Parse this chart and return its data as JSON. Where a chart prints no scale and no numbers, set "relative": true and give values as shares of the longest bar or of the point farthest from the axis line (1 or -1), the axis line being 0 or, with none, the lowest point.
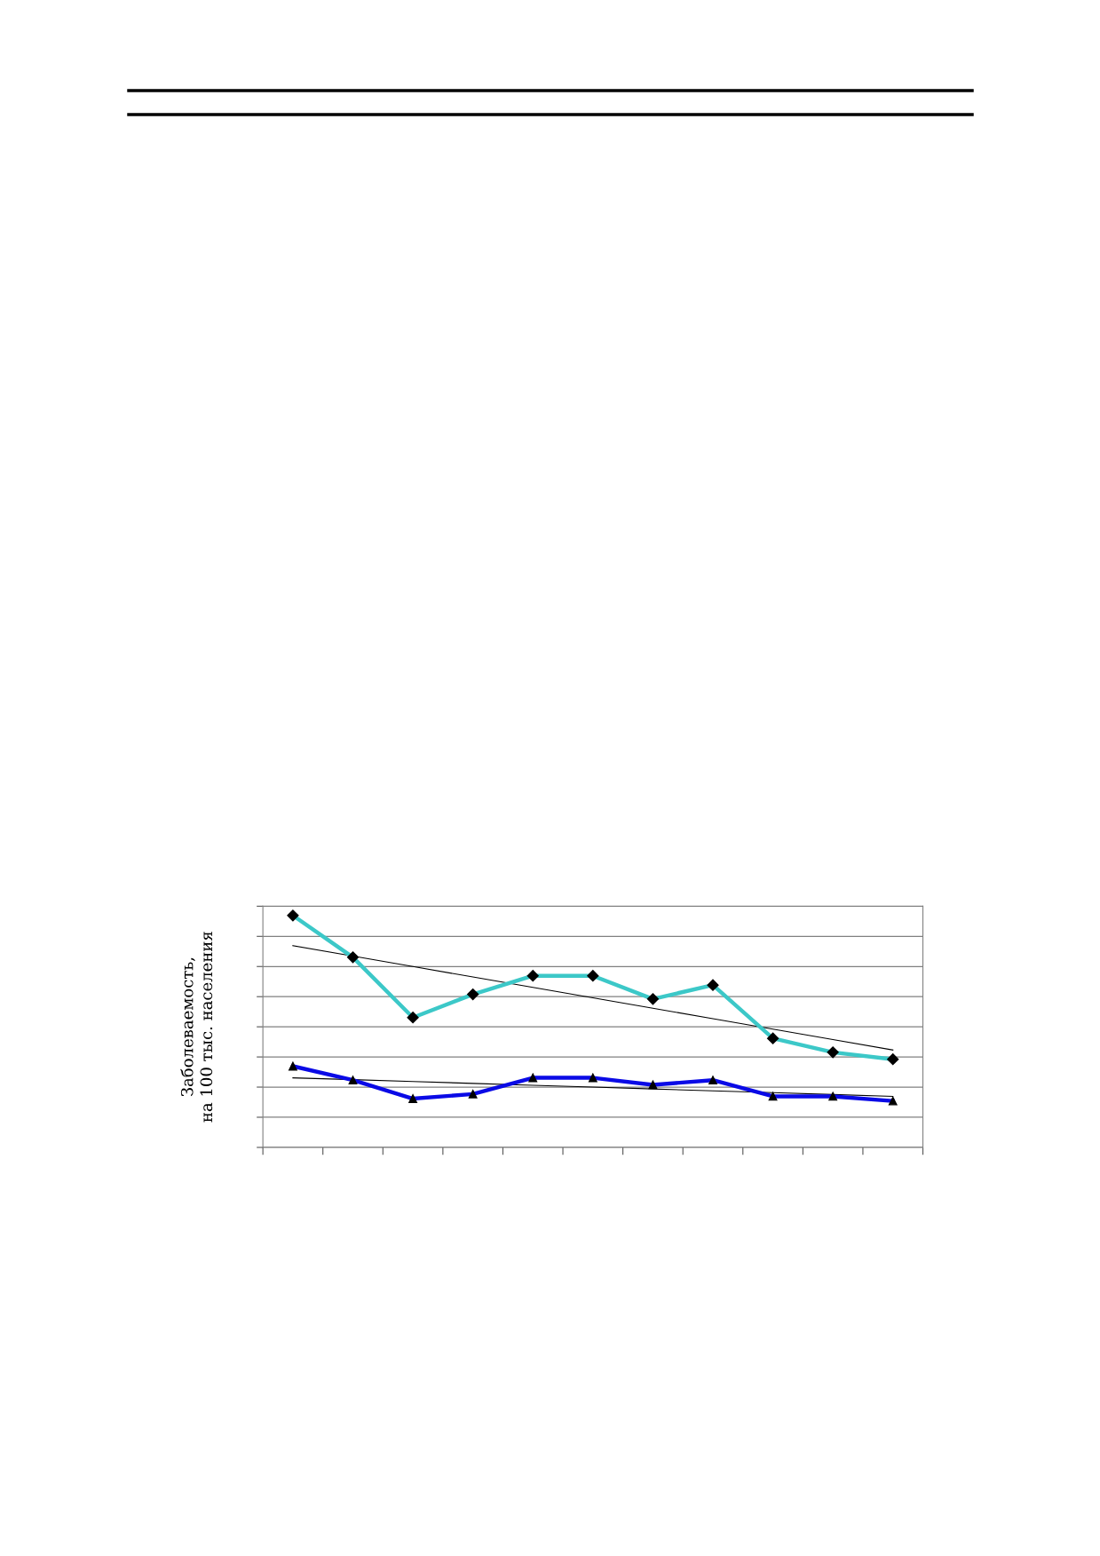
{
  "chart_data": {
    "type": "line",
    "relative": true,
    "ylabel": "Заболеваемость,\nна 100 тыс. населения",
    "categories": [
      null,
      null,
      null,
      null,
      null,
      null,
      null,
      null,
      null,
      null,
      null
    ],
    "grid": "y",
    "legend": false,
    "series": [
      {
        "color": "#3cc8c8",
        "marker": "diamond",
        "values": [
          1,
          0.82,
          0.56,
          0.66,
          0.74,
          0.74,
          0.64,
          0.7,
          0.47,
          0.41,
          0.38
        ]
      },
      {
        "color": "#0a0ae6",
        "marker": "triangle",
        "values": [
          0.35,
          0.29,
          0.21,
          0.23,
          0.3,
          0.3,
          0.27,
          0.29,
          0.22,
          0.22,
          0.2
        ]
      },
      {
        "color": "#000000",
        "marker": "none",
        "values": [
          0.87,
          0.825,
          0.78,
          0.735,
          0.69,
          0.645,
          0.6,
          0.555,
          0.51,
          0.465,
          0.42
        ]
      },
      {
        "color": "#000000",
        "marker": "none",
        "values": [
          0.3,
          0.292,
          0.284,
          0.276,
          0.268,
          0.26,
          0.252,
          0.244,
          0.236,
          0.228,
          0.22
        ]
      }
    ]
  }
}
